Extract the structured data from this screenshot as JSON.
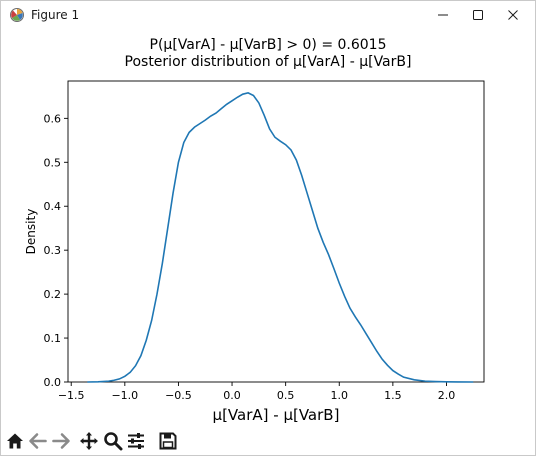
{
  "window": {
    "title": "Figure 1",
    "icon": "matplotlib-figure-icon",
    "controls": [
      "minimize-icon",
      "maximize-icon",
      "close-icon"
    ]
  },
  "figure": {
    "title_line1": "P(μ[VarA] - μ[VarB] > 0) = 0.6015",
    "title_line2": "Posterior distribution of μ[VarA] - μ[VarB]"
  },
  "toolbar": {
    "tools": [
      "home-icon",
      "back-arrow-icon",
      "forward-arrow-icon",
      "pan-icon",
      "zoom-icon",
      "configure-subplots-icon",
      "save-icon"
    ]
  },
  "colors": {
    "line": "#1f77b4",
    "axes": "#000000"
  },
  "chart_data": {
    "type": "line",
    "title": "P(μ[VarA] - μ[VarB] > 0) = 0.6015\nPosterior distribution of μ[VarA] - μ[VarB]",
    "xlabel": "μ[VarA] - μ[VarB]",
    "ylabel": "Density",
    "xlim": [
      -1.53,
      2.35
    ],
    "ylim": [
      0,
      0.685
    ],
    "xticks": [
      -1.5,
      -1.0,
      -0.5,
      0.0,
      0.5,
      1.0,
      1.5,
      2.0
    ],
    "xtick_labels": [
      "−1.5",
      "−1.0",
      "−0.5",
      "0.0",
      "0.5",
      "1.0",
      "1.5",
      "2.0"
    ],
    "yticks": [
      0.0,
      0.1,
      0.2,
      0.3,
      0.4,
      0.5,
      0.6
    ],
    "ytick_labels": [
      "0.0",
      "0.1",
      "0.2",
      "0.3",
      "0.4",
      "0.5",
      "0.6"
    ],
    "grid": false,
    "legend": "none",
    "series": [
      {
        "x": [
          -1.35,
          -1.25,
          -1.15,
          -1.1,
          -1.05,
          -1.0,
          -0.95,
          -0.9,
          -0.85,
          -0.8,
          -0.75,
          -0.7,
          -0.65,
          -0.6,
          -0.55,
          -0.5,
          -0.45,
          -0.4,
          -0.35,
          -0.3,
          -0.25,
          -0.2,
          -0.15,
          -0.1,
          -0.05,
          0.0,
          0.05,
          0.1,
          0.15,
          0.2,
          0.25,
          0.3,
          0.35,
          0.4,
          0.45,
          0.5,
          0.55,
          0.6,
          0.65,
          0.7,
          0.75,
          0.8,
          0.85,
          0.9,
          0.95,
          1.0,
          1.05,
          1.1,
          1.15,
          1.2,
          1.25,
          1.3,
          1.35,
          1.4,
          1.45,
          1.5,
          1.55,
          1.6,
          1.7,
          1.8,
          1.9,
          2.0,
          2.1,
          2.25
        ],
        "y": [
          0.0,
          0.0005,
          0.002,
          0.004,
          0.007,
          0.013,
          0.022,
          0.037,
          0.06,
          0.095,
          0.14,
          0.2,
          0.27,
          0.35,
          0.43,
          0.5,
          0.545,
          0.568,
          0.58,
          0.588,
          0.596,
          0.605,
          0.612,
          0.622,
          0.632,
          0.64,
          0.648,
          0.655,
          0.658,
          0.652,
          0.635,
          0.607,
          0.576,
          0.557,
          0.548,
          0.54,
          0.528,
          0.505,
          0.47,
          0.43,
          0.39,
          0.35,
          0.318,
          0.29,
          0.258,
          0.225,
          0.195,
          0.168,
          0.148,
          0.13,
          0.11,
          0.09,
          0.07,
          0.052,
          0.038,
          0.026,
          0.018,
          0.011,
          0.005,
          0.002,
          0.001,
          0.0005,
          0.0002,
          0.0
        ]
      }
    ]
  }
}
